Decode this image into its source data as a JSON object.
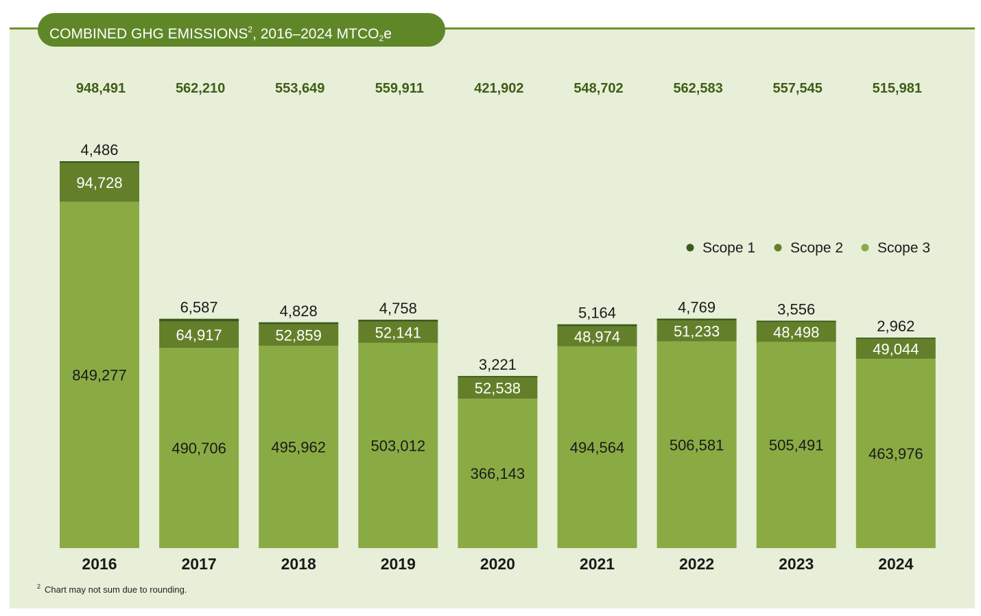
{
  "title": {
    "main": "COMBINED GHG EMISSIONS",
    "sup": "2",
    "range": ", 2016–2024 MTCO",
    "sub": "2",
    "tail": "e"
  },
  "footnote": {
    "marker": "2",
    "text": "Chart may not sum due to rounding."
  },
  "colors": {
    "panel": "#e7efd8",
    "pill": "#5f8728",
    "scope1": "#3a5a1a",
    "scope2": "#647f2a",
    "scope3": "#8aab44",
    "total_text": "#3f5c16"
  },
  "chart_data": {
    "type": "bar",
    "stacked": true,
    "categories": [
      "2016",
      "2017",
      "2018",
      "2019",
      "2020",
      "2021",
      "2022",
      "2023",
      "2024"
    ],
    "series": [
      {
        "name": "Scope 1",
        "values": [
          4486,
          6587,
          4828,
          4758,
          3221,
          5164,
          4769,
          3556,
          2962
        ],
        "labels": [
          "4,486",
          "6,587",
          "4,828",
          "4,758",
          "3,221",
          "5,164",
          "4,769",
          "3,556",
          "2,962"
        ]
      },
      {
        "name": "Scope 2",
        "values": [
          94728,
          64917,
          52859,
          52141,
          52538,
          48974,
          51233,
          48498,
          49044
        ],
        "labels": [
          "94,728",
          "64,917",
          "52,859",
          "52,141",
          "52,538",
          "48,974",
          "51,233",
          "48,498",
          "49,044"
        ]
      },
      {
        "name": "Scope 3",
        "values": [
          849277,
          490706,
          495962,
          503012,
          366143,
          494564,
          506581,
          505491,
          463976
        ],
        "labels": [
          "849,277",
          "490,706",
          "495,962",
          "503,012",
          "366,143",
          "494,564",
          "506,581",
          "505,491",
          "463,976"
        ]
      }
    ],
    "totals": [
      948491,
      562210,
      553649,
      559911,
      421902,
      548702,
      562583,
      557545,
      515981
    ],
    "total_labels": [
      "948,491",
      "562,210",
      "553,649",
      "559,911",
      "421,902",
      "548,702",
      "562,583",
      "557,545",
      "515,981"
    ],
    "legend": {
      "position": "right",
      "entries": [
        "Scope 1",
        "Scope 2",
        "Scope 3"
      ]
    },
    "grid": false,
    "axes_visible": false
  }
}
